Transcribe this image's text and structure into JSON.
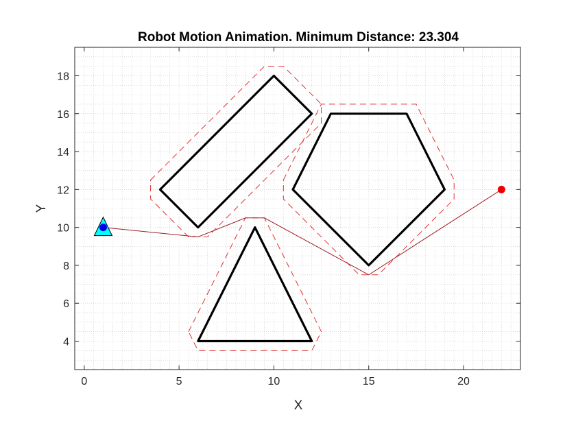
{
  "chart_data": {
    "type": "line",
    "title": "Robot Motion Animation. Minimum Distance: 23.304",
    "xlabel": "X",
    "ylabel": "Y",
    "xlim": [
      -0.5,
      23
    ],
    "ylim": [
      2.5,
      19.5
    ],
    "xticks": [
      0,
      5,
      10,
      15,
      20
    ],
    "yticks": [
      4,
      6,
      8,
      10,
      12,
      14,
      16,
      18
    ],
    "grid": "minor dotted",
    "obstacles": [
      {
        "shape": "rectangle",
        "vertices": [
          [
            4,
            12
          ],
          [
            10,
            18
          ],
          [
            12,
            16
          ],
          [
            6,
            10
          ]
        ]
      },
      {
        "shape": "pentagon",
        "vertices": [
          [
            11,
            12
          ],
          [
            13,
            16
          ],
          [
            17,
            16
          ],
          [
            19,
            12
          ],
          [
            15,
            8
          ]
        ]
      },
      {
        "shape": "triangle",
        "vertices": [
          [
            6,
            4
          ],
          [
            12,
            4
          ],
          [
            9,
            10
          ]
        ]
      }
    ],
    "inflated_boundaries": [
      [
        [
          3.5,
          12.5
        ],
        [
          9.5,
          18.5
        ],
        [
          10.5,
          18.5
        ],
        [
          12.5,
          16.5
        ],
        [
          12.5,
          15.5
        ],
        [
          6.5,
          9.5
        ],
        [
          5.5,
          9.5
        ],
        [
          3.5,
          11.5
        ]
      ],
      [
        [
          10.5,
          12.5
        ],
        [
          12.5,
          16.5
        ],
        [
          17.5,
          16.5
        ],
        [
          19.5,
          12.5
        ],
        [
          19.5,
          11.5
        ],
        [
          15.5,
          7.5
        ],
        [
          14.5,
          7.5
        ],
        [
          10.5,
          11.5
        ]
      ],
      [
        [
          5.5,
          4.5
        ],
        [
          8.5,
          10.5
        ],
        [
          9.5,
          10.5
        ],
        [
          12.5,
          4.5
        ],
        [
          12,
          3.5
        ],
        [
          6,
          3.5
        ]
      ]
    ],
    "path": [
      [
        1,
        10
      ],
      [
        6,
        9.5
      ],
      [
        8.5,
        10.5
      ],
      [
        9.5,
        10.5
      ],
      [
        15,
        7.5
      ],
      [
        22,
        12
      ]
    ],
    "robot": {
      "x": 1,
      "y": 10
    },
    "start_point": {
      "x": 1,
      "y": 10
    },
    "goal_point": {
      "x": 22,
      "y": 12
    },
    "colors": {
      "obstacle": "#000000",
      "inflated": "#e03030",
      "path": "#a01e28",
      "robot_fill": "#00ffff",
      "start": "#0000ee",
      "goal": "#ee0000"
    }
  }
}
